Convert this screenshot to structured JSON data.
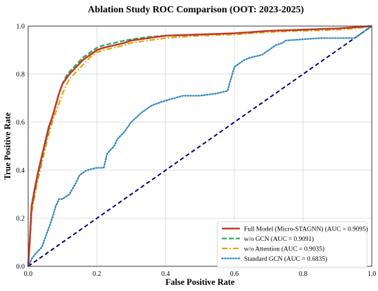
{
  "chart_data": {
    "type": "line",
    "title": "Ablation Study ROC Comparison (OOT: 2023-2025)",
    "xlabel": "False Positive Rate",
    "ylabel": "True Positive Rate",
    "xlim": [
      0.0,
      1.0
    ],
    "ylim": [
      0.0,
      1.0
    ],
    "xticks": [
      "0.0",
      "0.2",
      "0.4",
      "0.6",
      "0.8",
      "1.0"
    ],
    "yticks": [
      "0.0",
      "0.2",
      "0.4",
      "0.6",
      "0.8",
      "1.0"
    ],
    "grid": true,
    "legend_position": "bottom-right",
    "series": [
      {
        "name": "Full Model (Micro-STAGNN) (AUC = 0.9095)",
        "color": "#c0392b",
        "style": "solid",
        "x": [
          0,
          0.005,
          0.01,
          0.02,
          0.03,
          0.04,
          0.05,
          0.06,
          0.07,
          0.08,
          0.09,
          0.1,
          0.11,
          0.12,
          0.14,
          0.16,
          0.18,
          0.2,
          0.22,
          0.25,
          0.28,
          0.3,
          0.35,
          0.4,
          0.5,
          0.6,
          0.65,
          0.7,
          0.8,
          0.9,
          0.95,
          1.0
        ],
        "y": [
          0,
          0.12,
          0.25,
          0.33,
          0.4,
          0.46,
          0.52,
          0.58,
          0.62,
          0.67,
          0.72,
          0.76,
          0.78,
          0.8,
          0.83,
          0.86,
          0.88,
          0.9,
          0.91,
          0.92,
          0.93,
          0.94,
          0.95,
          0.96,
          0.965,
          0.97,
          0.975,
          0.98,
          0.985,
          0.99,
          0.995,
          1.0
        ]
      },
      {
        "name": "w/o GCN (AUC = 0.9091)",
        "color": "#27ae60",
        "style": "dashed",
        "x": [
          0,
          0.005,
          0.01,
          0.02,
          0.03,
          0.04,
          0.05,
          0.06,
          0.07,
          0.08,
          0.09,
          0.1,
          0.11,
          0.12,
          0.14,
          0.16,
          0.18,
          0.2,
          0.22,
          0.25,
          0.28,
          0.3,
          0.35,
          0.4,
          0.5,
          0.6,
          0.65,
          0.7,
          0.8,
          0.9,
          0.95,
          1.0
        ],
        "y": [
          0,
          0.11,
          0.24,
          0.32,
          0.39,
          0.45,
          0.51,
          0.57,
          0.62,
          0.67,
          0.72,
          0.76,
          0.79,
          0.81,
          0.84,
          0.87,
          0.89,
          0.91,
          0.92,
          0.93,
          0.94,
          0.945,
          0.955,
          0.96,
          0.965,
          0.97,
          0.975,
          0.98,
          0.985,
          0.99,
          0.995,
          1.0
        ]
      },
      {
        "name": "w/o Attention (AUC = 0.9035)",
        "color": "#e6a700",
        "style": "dashdot",
        "x": [
          0,
          0.005,
          0.01,
          0.02,
          0.03,
          0.04,
          0.05,
          0.06,
          0.07,
          0.08,
          0.09,
          0.1,
          0.11,
          0.12,
          0.14,
          0.16,
          0.18,
          0.2,
          0.22,
          0.25,
          0.28,
          0.3,
          0.35,
          0.4,
          0.5,
          0.6,
          0.65,
          0.7,
          0.8,
          0.9,
          0.95,
          1.0
        ],
        "y": [
          0,
          0.1,
          0.22,
          0.3,
          0.37,
          0.43,
          0.49,
          0.55,
          0.6,
          0.64,
          0.68,
          0.72,
          0.75,
          0.78,
          0.81,
          0.84,
          0.87,
          0.89,
          0.9,
          0.91,
          0.92,
          0.93,
          0.94,
          0.95,
          0.96,
          0.965,
          0.97,
          0.975,
          0.98,
          0.985,
          0.99,
          1.0
        ]
      },
      {
        "name": "Standard GCN (AUC = 0.6835)",
        "color": "#2e86c1",
        "style": "dotted",
        "x": [
          0,
          0.01,
          0.02,
          0.04,
          0.05,
          0.06,
          0.07,
          0.08,
          0.09,
          0.1,
          0.12,
          0.14,
          0.15,
          0.17,
          0.2,
          0.22,
          0.23,
          0.25,
          0.26,
          0.28,
          0.3,
          0.33,
          0.36,
          0.38,
          0.4,
          0.45,
          0.5,
          0.55,
          0.58,
          0.59,
          0.6,
          0.63,
          0.65,
          0.68,
          0.7,
          0.72,
          0.74,
          0.75,
          0.8,
          0.85,
          0.9,
          0.93,
          0.95,
          0.97,
          1.0
        ],
        "y": [
          0,
          0.03,
          0.05,
          0.08,
          0.12,
          0.16,
          0.2,
          0.25,
          0.28,
          0.28,
          0.3,
          0.35,
          0.38,
          0.4,
          0.41,
          0.41,
          0.47,
          0.5,
          0.53,
          0.56,
          0.6,
          0.64,
          0.67,
          0.68,
          0.69,
          0.71,
          0.71,
          0.72,
          0.73,
          0.78,
          0.83,
          0.86,
          0.87,
          0.88,
          0.9,
          0.92,
          0.93,
          0.94,
          0.945,
          0.95,
          0.95,
          0.95,
          0.95,
          0.97,
          1.0
        ]
      },
      {
        "name": "",
        "color": "#000080",
        "style": "dashed",
        "x": [
          0,
          1
        ],
        "y": [
          0,
          1
        ]
      }
    ]
  }
}
